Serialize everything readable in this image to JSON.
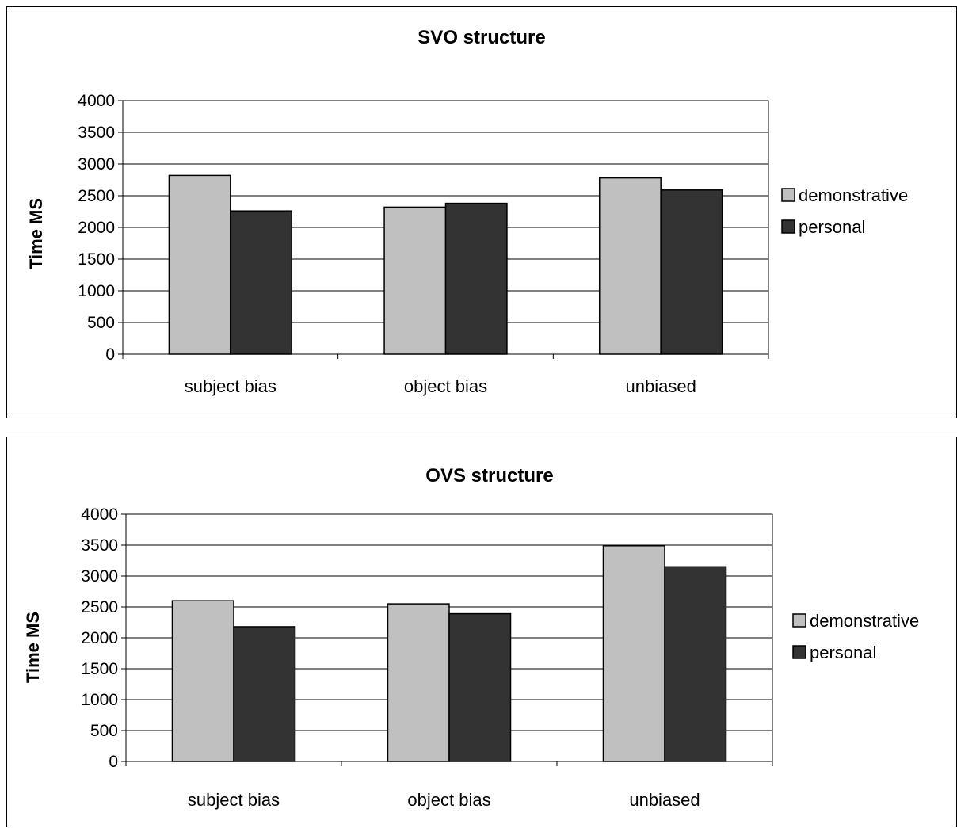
{
  "chart_data": [
    {
      "type": "bar",
      "title": "SVO structure",
      "ylabel": "Time MS",
      "xlabel": "",
      "categories": [
        "subject bias",
        "object bias",
        "unbiased"
      ],
      "series": [
        {
          "name": "demonstrative",
          "color": "#c0c0c0",
          "values": [
            2820,
            2320,
            2780
          ]
        },
        {
          "name": "personal",
          "color": "#333333",
          "values": [
            2260,
            2380,
            2590
          ]
        }
      ],
      "ylim": [
        0,
        4000
      ],
      "yticks": [
        "0",
        "500",
        "1000",
        "1500",
        "2000",
        "2500",
        "3000",
        "3500",
        "4000"
      ],
      "grid": true,
      "legend": "right"
    },
    {
      "type": "bar",
      "title": "OVS structure",
      "ylabel": "Time MS",
      "xlabel": "",
      "categories": [
        "subject bias",
        "object bias",
        "unbiased"
      ],
      "series": [
        {
          "name": "demonstrative",
          "color": "#c0c0c0",
          "values": [
            2600,
            2550,
            3490
          ]
        },
        {
          "name": "personal",
          "color": "#333333",
          "values": [
            2180,
            2390,
            3150
          ]
        }
      ],
      "ylim": [
        0,
        4000
      ],
      "yticks": [
        "0",
        "500",
        "1000",
        "1500",
        "2000",
        "2500",
        "3000",
        "3500",
        "4000"
      ],
      "grid": true,
      "legend": "right"
    }
  ]
}
